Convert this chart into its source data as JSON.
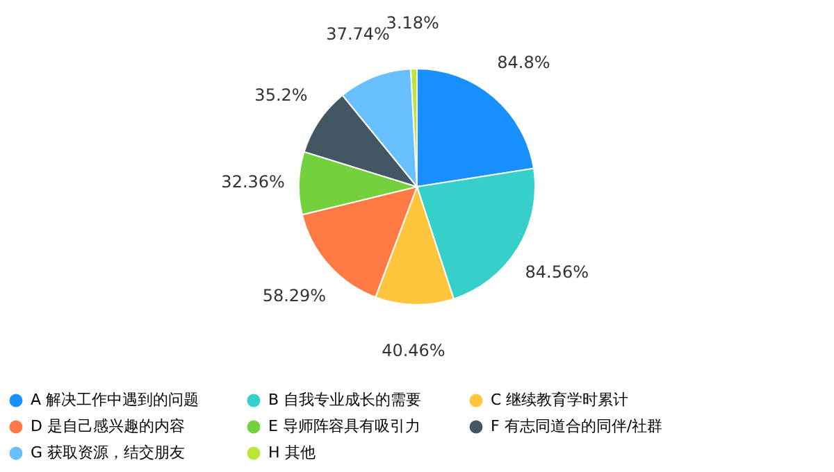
{
  "chart_data": {
    "type": "pie",
    "categories": [
      "A 解决工作中遇到的问题",
      "B 自我专业成长的需要",
      "C 继续教育学时累计",
      "D 是自己感兴趣的内容",
      "E 导师阵容具有吸引力",
      "F 有志同道合的同伴/社群",
      "G 获取资源，结交朋友",
      "H 其他"
    ],
    "values": [
      84.8,
      84.56,
      40.46,
      58.29,
      32.36,
      35.2,
      37.74,
      3.18
    ],
    "value_labels": [
      "84.8%",
      "84.56%",
      "40.46%",
      "58.29%",
      "32.36%",
      "35.2%",
      "37.74%",
      "3.18%"
    ],
    "colors": [
      "#1890ff",
      "#36cfc9",
      "#ffc53d",
      "#ff7a45",
      "#73d13d",
      "#435663",
      "#69c0ff",
      "#bae637"
    ],
    "legend": "bottom"
  }
}
